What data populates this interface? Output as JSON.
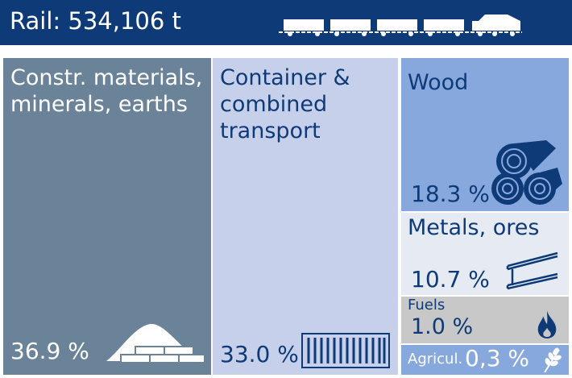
{
  "header": {
    "title": "Rail: 534,106 t"
  },
  "chart_data": {
    "type": "treemap",
    "total": "534,106 t",
    "categories": [
      {
        "label_lines": [
          "Constr. materials,",
          "minerals, earths"
        ],
        "value_text": "36.9 %",
        "value": 36.9,
        "color": "#6b8399",
        "text_color": "#ffffff",
        "icon": "sand-pile-bricks-icon"
      },
      {
        "label_lines": [
          "Container &",
          "combined",
          "transport"
        ],
        "value_text": "33.0 %",
        "value": 33.0,
        "color": "#c6d0ea",
        "text_color": "#0f3a78",
        "icon": "shipping-container-icon"
      },
      {
        "label_lines": [
          "Wood"
        ],
        "value_text": "18.3 %",
        "value": 18.3,
        "color": "#87a8dc",
        "text_color": "#0f3a78",
        "icon": "logs-icon"
      },
      {
        "label_lines": [
          "Metals, ores"
        ],
        "value_text": "10.7 %",
        "value": 10.7,
        "color": "#e6ebf3",
        "text_color": "#0f3a78",
        "icon": "steel-beam-icon"
      },
      {
        "label_lines": [
          "Fuels"
        ],
        "value_text": "1.0 %",
        "value": 1.0,
        "color": "#c8c8c8",
        "text_color": "#0f3a78",
        "icon": "flame-icon"
      },
      {
        "label_lines": [
          "Agricul."
        ],
        "value_text": "0,3 %",
        "value": 0.3,
        "color": "#87a8dc",
        "text_color": "#ffffff",
        "icon": "wheat-icon"
      }
    ]
  }
}
